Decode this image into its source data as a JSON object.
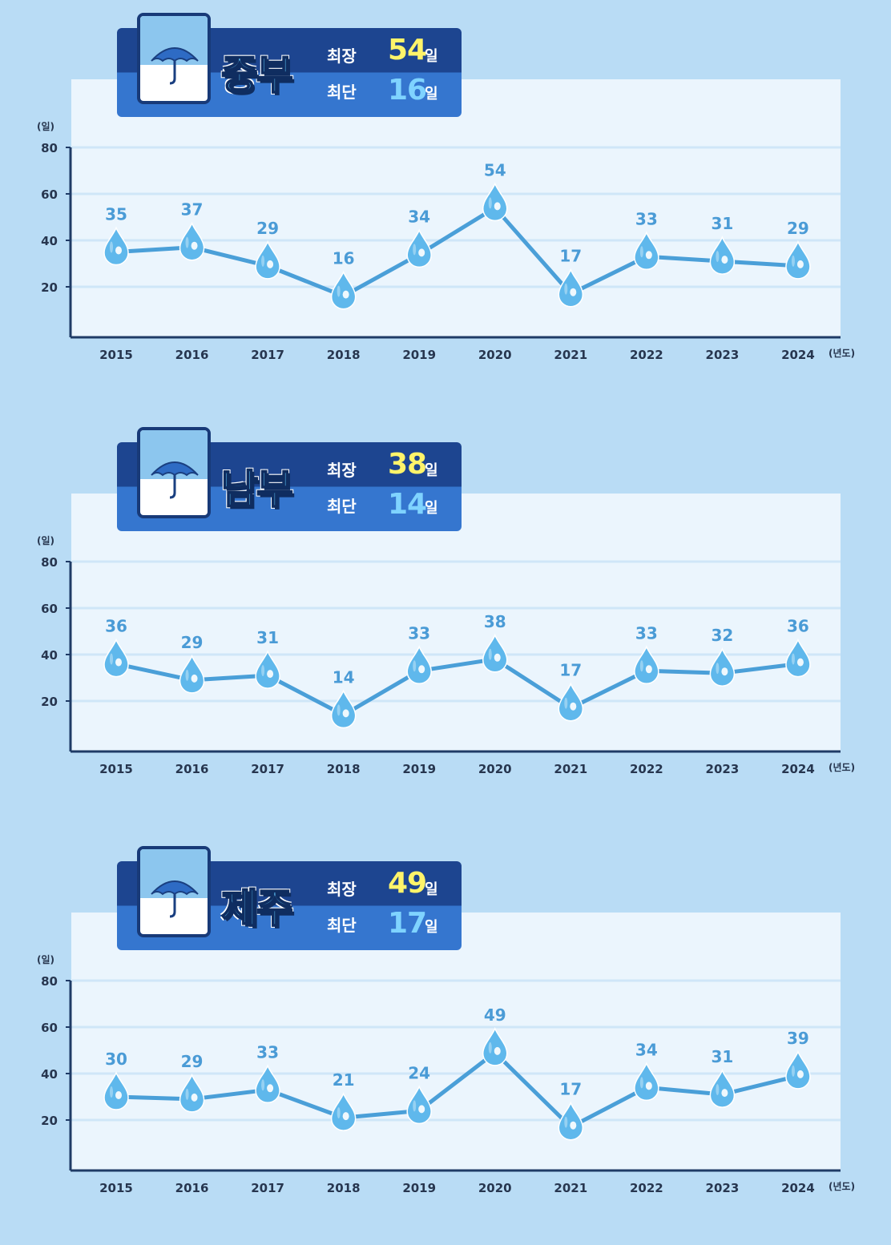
{
  "chart_data": [
    {
      "type": "line",
      "title": "중부",
      "stats": {
        "max_label": "최장",
        "max_value": "54",
        "min_label": "최단",
        "min_value": "16",
        "unit": "일"
      },
      "x": [
        "2015",
        "2016",
        "2017",
        "2018",
        "2019",
        "2020",
        "2021",
        "2022",
        "2023",
        "2024"
      ],
      "series": [
        {
          "values": [
            35,
            37,
            29,
            16,
            34,
            54,
            17,
            33,
            31,
            29
          ]
        }
      ],
      "yticks": [
        20,
        40,
        60,
        80
      ],
      "ylim": [
        0,
        80
      ],
      "ylabel": "(일)",
      "xlabel": "(년도)",
      "grid": true
    },
    {
      "type": "line",
      "title": "남부",
      "stats": {
        "max_label": "최장",
        "max_value": "38",
        "min_label": "최단",
        "min_value": "14",
        "unit": "일"
      },
      "x": [
        "2015",
        "2016",
        "2017",
        "2018",
        "2019",
        "2020",
        "2021",
        "2022",
        "2023",
        "2024"
      ],
      "series": [
        {
          "values": [
            36,
            29,
            31,
            14,
            33,
            38,
            17,
            33,
            32,
            36
          ]
        }
      ],
      "yticks": [
        20,
        40,
        60,
        80
      ],
      "ylim": [
        0,
        80
      ],
      "ylabel": "(일)",
      "xlabel": "(년도)",
      "grid": true
    },
    {
      "type": "line",
      "title": "제주",
      "stats": {
        "max_label": "최장",
        "max_value": "49",
        "min_label": "최단",
        "min_value": "17",
        "unit": "일"
      },
      "x": [
        "2015",
        "2016",
        "2017",
        "2018",
        "2019",
        "2020",
        "2021",
        "2022",
        "2023",
        "2024"
      ],
      "series": [
        {
          "values": [
            30,
            29,
            33,
            21,
            24,
            49,
            17,
            34,
            31,
            39
          ]
        }
      ],
      "yticks": [
        20,
        40,
        60,
        80
      ],
      "ylim": [
        0,
        80
      ],
      "ylabel": "(일)",
      "xlabel": "(년도)",
      "grid": true
    }
  ],
  "colors": {
    "line": "#4a9fd8",
    "drop": "#5fb8ec",
    "label": "#4a9bd6",
    "max_value": "#fff46a",
    "min_value": "#7fd3ff"
  },
  "icons": {
    "calendar": "umbrella-calendar-icon",
    "point": "raindrop-icon"
  }
}
